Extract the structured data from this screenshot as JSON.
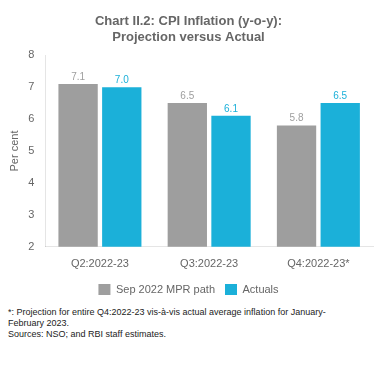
{
  "chart_data": {
    "type": "bar",
    "title": [
      "Chart II.2: CPI Inflation (y-o-y):",
      "Projection versus Actual"
    ],
    "categories": [
      "Q2:2022-23",
      "Q3:2022-23",
      "Q4:2022-23*"
    ],
    "series": [
      {
        "name": "Sep 2022 MPR path",
        "color": "#9E9E9E",
        "values": [
          7.1,
          6.5,
          5.8
        ],
        "value_labels": [
          "7.1",
          "6.5",
          "5.8"
        ]
      },
      {
        "name": "Actuals",
        "color": "#1BB0D9",
        "values": [
          7.0,
          6.1,
          6.5
        ],
        "value_labels": [
          "7.0",
          "6.1",
          "6.5"
        ]
      }
    ],
    "ylabel": "Per cent",
    "ylim": [
      2,
      8
    ],
    "yticks": [
      2,
      3,
      4,
      5,
      6,
      7,
      8
    ],
    "grid": false,
    "legend": "bottom",
    "data_labels": true,
    "annotations": [
      "*: Projection for entire Q4:2022-23 vis-à-vis actual average inflation for January-",
      "February 2023.",
      "Sources: NSO; and RBI staff estimates."
    ]
  }
}
